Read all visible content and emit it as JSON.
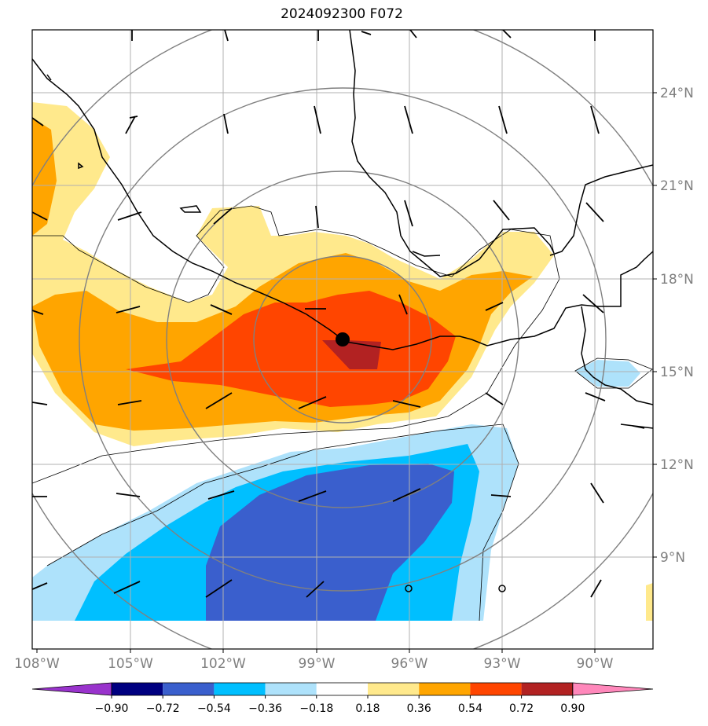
{
  "title": "2024092300 F072",
  "lon_labels": [
    "108°W",
    "105°W",
    "102°W",
    "99°W",
    "96°W",
    "93°W",
    "90°W"
  ],
  "lat_labels": [
    "24°N",
    "21°N",
    "18°N",
    "15°N",
    "12°N",
    "9°N"
  ],
  "colorbar": {
    "ticks": [
      "−0.90",
      "−0.72",
      "−0.54",
      "−0.36",
      "−0.18",
      "0.18",
      "0.36",
      "0.54",
      "0.72",
      "0.90"
    ],
    "colors": [
      "#9933cc",
      "#000080",
      "#3a5fcd",
      "#00bfff",
      "#aee2fb",
      "#ffffff",
      "#ffe98c",
      "#ffa500",
      "#ff4500",
      "#b22222",
      "#ff88bb"
    ]
  },
  "map": {
    "lon_min": -108.0,
    "lon_max": -88.2,
    "lat_min": 6.3,
    "lat_max": 26.1,
    "center": {
      "lon": -98.0,
      "lat": 16.0
    },
    "range_rings_deg": [
      3,
      6,
      9,
      12
    ]
  }
}
